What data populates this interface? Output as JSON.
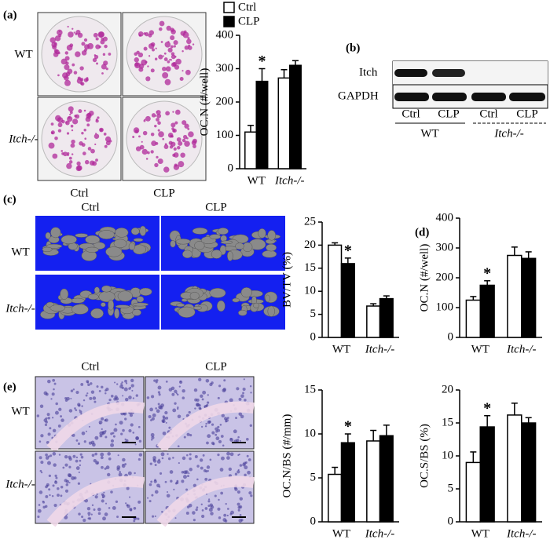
{
  "panel_labels": [
    "(a)",
    "(b)",
    "(c)",
    "(d)",
    "(e)"
  ],
  "panel_a": {
    "row_labels": [
      "WT",
      "Itch-/-"
    ],
    "col_labels": [
      "Ctrl",
      "CLP"
    ]
  },
  "panel_b": {
    "bands": [
      "Itch",
      "GAPDH"
    ],
    "lanes": [
      "Ctrl",
      "CLP",
      "Ctrl",
      "CLP"
    ],
    "groups": [
      "WT",
      "Itch-/-"
    ]
  },
  "panel_c": {
    "row_labels": [
      "WT",
      "Itch-/-"
    ],
    "col_labels": [
      "Ctrl",
      "CLP"
    ]
  },
  "panel_e": {
    "row_labels": [
      "WT",
      "Itch-/-"
    ],
    "col_labels": [
      "Ctrl",
      "CLP"
    ]
  },
  "chart_data": [
    {
      "type": "bar",
      "ylabel": "OC.N (#/well)",
      "categories": [
        "WT",
        "Itch-/-"
      ],
      "legend": true,
      "annotation": "*",
      "ylim": [
        0,
        400
      ],
      "yticks": [
        0,
        100,
        200,
        300,
        400
      ],
      "series": [
        {
          "name": "Ctrl",
          "color": "#ffffff",
          "values": [
            110,
            272
          ],
          "errors": [
            20,
            25
          ]
        },
        {
          "name": "CLP",
          "color": "#000000",
          "values": [
            262,
            310
          ],
          "errors": [
            38,
            14
          ]
        }
      ]
    },
    {
      "type": "bar",
      "ylabel": "BV/TV (%)",
      "categories": [
        "WT",
        "Itch-/-"
      ],
      "legend": false,
      "annotation": "*",
      "ylim": [
        0,
        25
      ],
      "yticks": [
        0,
        5,
        10,
        15,
        20,
        25
      ],
      "series": [
        {
          "name": "Ctrl",
          "color": "#ffffff",
          "values": [
            20,
            6.8
          ],
          "errors": [
            0.5,
            0.5
          ]
        },
        {
          "name": "CLP",
          "color": "#000000",
          "values": [
            16,
            8.4
          ],
          "errors": [
            1.2,
            0.6
          ]
        }
      ]
    },
    {
      "type": "bar",
      "ylabel": "OC.N (#/well)",
      "categories": [
        "WT",
        "Itch-/-"
      ],
      "legend": false,
      "annotation": "*",
      "ylim": [
        0,
        400
      ],
      "yticks": [
        0,
        100,
        200,
        300,
        400
      ],
      "series": [
        {
          "name": "Ctrl",
          "color": "#ffffff",
          "values": [
            125,
            275
          ],
          "errors": [
            12,
            28
          ]
        },
        {
          "name": "CLP",
          "color": "#000000",
          "values": [
            175,
            265
          ],
          "errors": [
            15,
            22
          ]
        }
      ]
    },
    {
      "type": "bar",
      "ylabel": "OC.N/BS (#/mm)",
      "categories": [
        "WT",
        "Itch-/-"
      ],
      "legend": false,
      "annotation": "*",
      "ylim": [
        0,
        15
      ],
      "yticks": [
        0,
        5,
        10,
        15
      ],
      "series": [
        {
          "name": "Ctrl",
          "color": "#ffffff",
          "values": [
            5.4,
            9.2
          ],
          "errors": [
            0.8,
            1.2
          ]
        },
        {
          "name": "CLP",
          "color": "#000000",
          "values": [
            9.0,
            9.8
          ],
          "errors": [
            1.0,
            1.2
          ]
        }
      ]
    },
    {
      "type": "bar",
      "ylabel": "OC.S/BS (%)",
      "categories": [
        "WT",
        "Itch-/-"
      ],
      "legend": false,
      "annotation": "*",
      "ylim": [
        0,
        20
      ],
      "yticks": [
        0,
        5,
        10,
        15,
        20
      ],
      "series": [
        {
          "name": "Ctrl",
          "color": "#ffffff",
          "values": [
            9,
            16.2
          ],
          "errors": [
            1.6,
            1.8
          ]
        },
        {
          "name": "CLP",
          "color": "#000000",
          "values": [
            14.4,
            15
          ],
          "errors": [
            1.7,
            0.8
          ]
        }
      ]
    }
  ]
}
